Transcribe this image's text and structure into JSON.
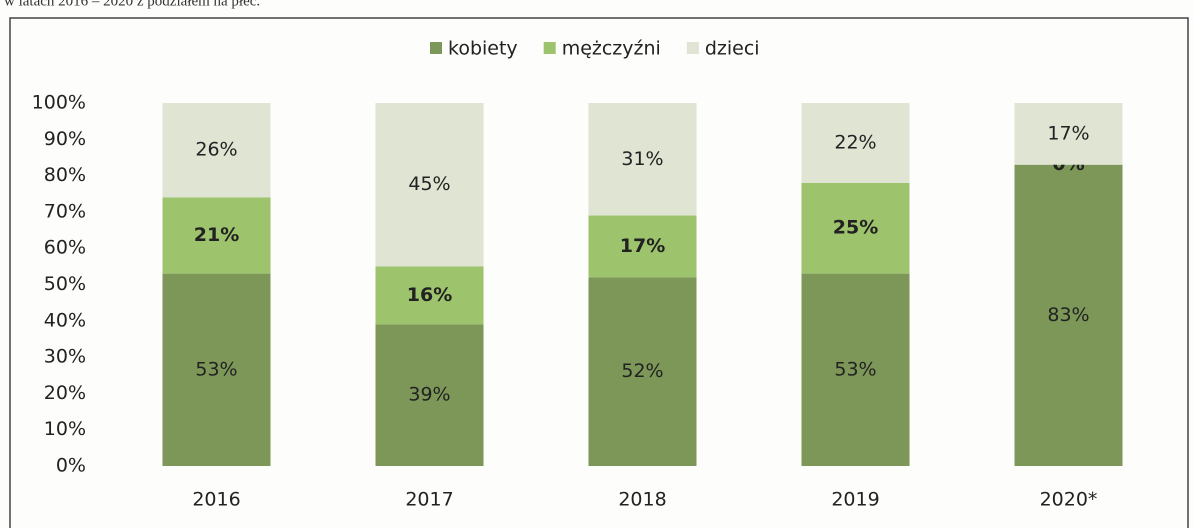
{
  "caption": "w latach 2016 – 2020 z podziałem na płeć.",
  "chart_data": {
    "type": "stacked_bar",
    "categories": [
      "2016",
      "2017",
      "2018",
      "2019",
      "2020*"
    ],
    "series": [
      {
        "name": "kobiety",
        "color": "#7d9758",
        "values": [
          53,
          39,
          52,
          53,
          83
        ],
        "value_labels": [
          "53%",
          "39%",
          "52%",
          "53%",
          "83%"
        ]
      },
      {
        "name": "mężczyźni",
        "color": "#9dc36c",
        "values": [
          21,
          16,
          17,
          25,
          0
        ],
        "value_labels": [
          "21%",
          "16%",
          "17%",
          "25%",
          "0%"
        ]
      },
      {
        "name": "dzieci",
        "color": "#dfe4d3",
        "values": [
          26,
          45,
          31,
          22,
          17
        ],
        "value_labels": [
          "26%",
          "45%",
          "31%",
          "22%",
          "17%"
        ]
      }
    ],
    "ylim": [
      0,
      100
    ],
    "yticks": [
      {
        "value": 0,
        "label": "0%"
      },
      {
        "value": 10,
        "label": "10%"
      },
      {
        "value": 20,
        "label": "20%"
      },
      {
        "value": 30,
        "label": "30%"
      },
      {
        "value": 40,
        "label": "40%"
      },
      {
        "value": 50,
        "label": "50%"
      },
      {
        "value": 60,
        "label": "60%"
      },
      {
        "value": 70,
        "label": "70%"
      },
      {
        "value": 80,
        "label": "80%"
      },
      {
        "value": 90,
        "label": "90%"
      },
      {
        "value": 100,
        "label": "100%"
      }
    ],
    "legend": "top",
    "grid": false
  }
}
